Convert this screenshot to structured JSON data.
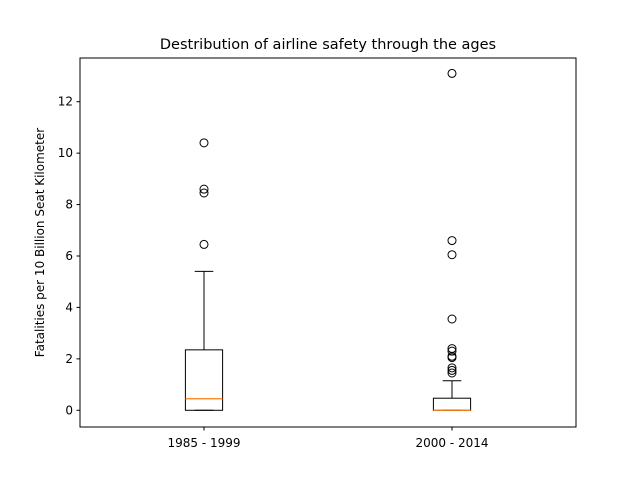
{
  "chart_data": {
    "type": "boxplot",
    "title": "Destribution of airline safety through the ages",
    "xlabel": "",
    "ylabel": "Fatalities per 10 Billion Seat Kilometer",
    "ylim": [
      -0.65,
      13.7
    ],
    "yticks": [
      0,
      2,
      4,
      6,
      8,
      10,
      12
    ],
    "grid": false,
    "categories": [
      "1985 - 1999",
      "2000 - 2014"
    ],
    "boxes": [
      {
        "label": "1985 - 1999",
        "whisker_low": 0.0,
        "q1": 0.0,
        "median": 0.45,
        "q3": 2.35,
        "whisker_high": 5.4,
        "outliers": [
          10.4,
          8.6,
          8.45,
          6.45
        ]
      },
      {
        "label": "2000 - 2014",
        "whisker_low": 0.0,
        "q1": 0.0,
        "median": 0.0,
        "q3": 0.47,
        "whisker_high": 1.15,
        "outliers": [
          13.1,
          6.6,
          6.05,
          3.55,
          2.4,
          2.3,
          2.1,
          2.05,
          1.65,
          1.55,
          1.45
        ]
      }
    ],
    "colors": {
      "box": "#000000",
      "median": "#ff7f0e",
      "axes": "#000000",
      "background": "#ffffff"
    }
  }
}
